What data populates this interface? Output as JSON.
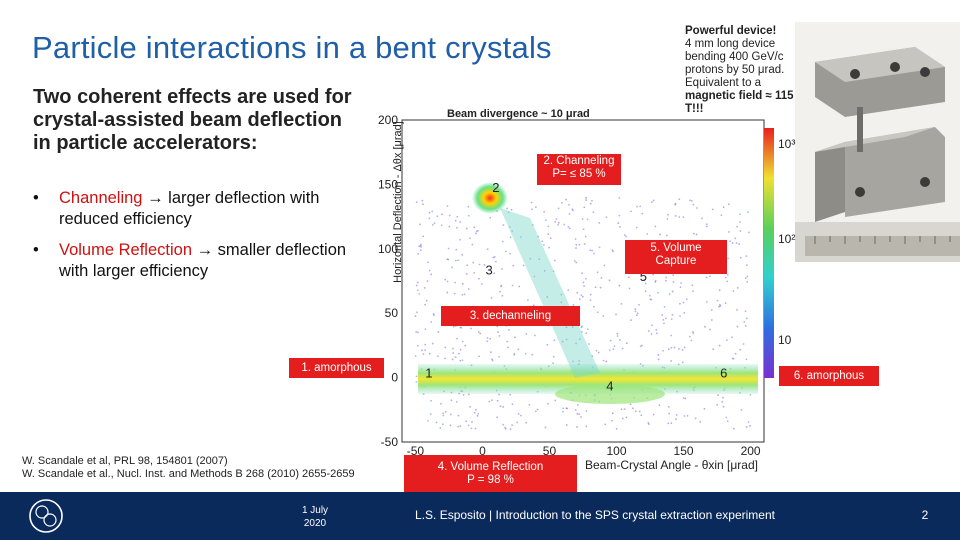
{
  "slide": {
    "title": "Particle interactions in a bent crystals",
    "intro": "Two coherent effects are used for crystal-assisted beam deflection in particle accelerators:",
    "bullets": [
      {
        "marker": "•",
        "highlight": "Channeling",
        "rest": " → larger deflection with reduced efficiency"
      },
      {
        "marker": "•",
        "highlight": "Volume Reflection ",
        "rest": " → smaller deflection with larger efficiency"
      }
    ],
    "references": [
      "W. Scandale et al, PRL 98, 154801 (2007)",
      "W. Scandale et al., Nucl. Inst. and Methods B 268  (2010) 2655-2659"
    ],
    "device": {
      "heading": "Powerful device!",
      "line1": "4 mm long device bending 400 GeV/c protons by 50 μrad. Equivalent to a",
      "line2": "magnetic field ≈ 115 T!!!"
    }
  },
  "plot": {
    "beam_divergence": "Beam divergence ~ 10 μrad",
    "ylabel": "Horizontal Deflection - Δθx [μrad]",
    "xlabel": "Beam-Crystal Angle - θxin [μrad]",
    "x_ticks": [
      "-50",
      "0",
      "50",
      "100",
      "150",
      "200"
    ],
    "y_ticks": [
      "-50",
      "0",
      "50",
      "100",
      "150",
      "200"
    ],
    "colorbar_ticks": [
      "10³",
      "10²",
      "10"
    ],
    "region_numbers": [
      "1",
      "2",
      "3",
      "4",
      "5",
      "6"
    ],
    "labels": {
      "channeling": "2. Channeling\nP= ≤ 85 %",
      "volume_capture": "5. Volume\nCapture",
      "dechanneling": "3. dechanneling",
      "amorphous1": "1. amorphous",
      "amorphous6": "6. amorphous",
      "volume_reflection": "4. Volume Reflection\nP = 98 %"
    }
  },
  "chart_data": {
    "type": "heatmap",
    "xlabel": "Beam-Crystal Angle - θxin [μrad]",
    "ylabel": "Horizontal Deflection - Δθx [μrad]",
    "xlim": [
      -60,
      210
    ],
    "ylim": [
      -50,
      200
    ],
    "colorbar": [
      "10",
      "10²",
      "10³"
    ],
    "regions": [
      {
        "label": "1. amorphous",
        "x": -40,
        "y": 0
      },
      {
        "label": "2. Channeling P= ≤ 85 %",
        "x": 10,
        "y": 155
      },
      {
        "label": "3. dechanneling",
        "x": 5,
        "y": 80
      },
      {
        "label": "4. Volume Reflection P = 98 %",
        "x": 95,
        "y": -10
      },
      {
        "label": "5. Volume Capture",
        "x": 120,
        "y": 75
      },
      {
        "label": "6. amorphous",
        "x": 180,
        "y": 0
      }
    ]
  },
  "footer": {
    "date": "1 July 2020",
    "text": "L.S. Esposito | Introduction to the SPS crystal extraction experiment",
    "page": "2"
  },
  "colors": {
    "title": "#1f5fa8",
    "highlight": "#d01010",
    "label_box": "#e41e1e",
    "footer": "#0b2a5c"
  }
}
